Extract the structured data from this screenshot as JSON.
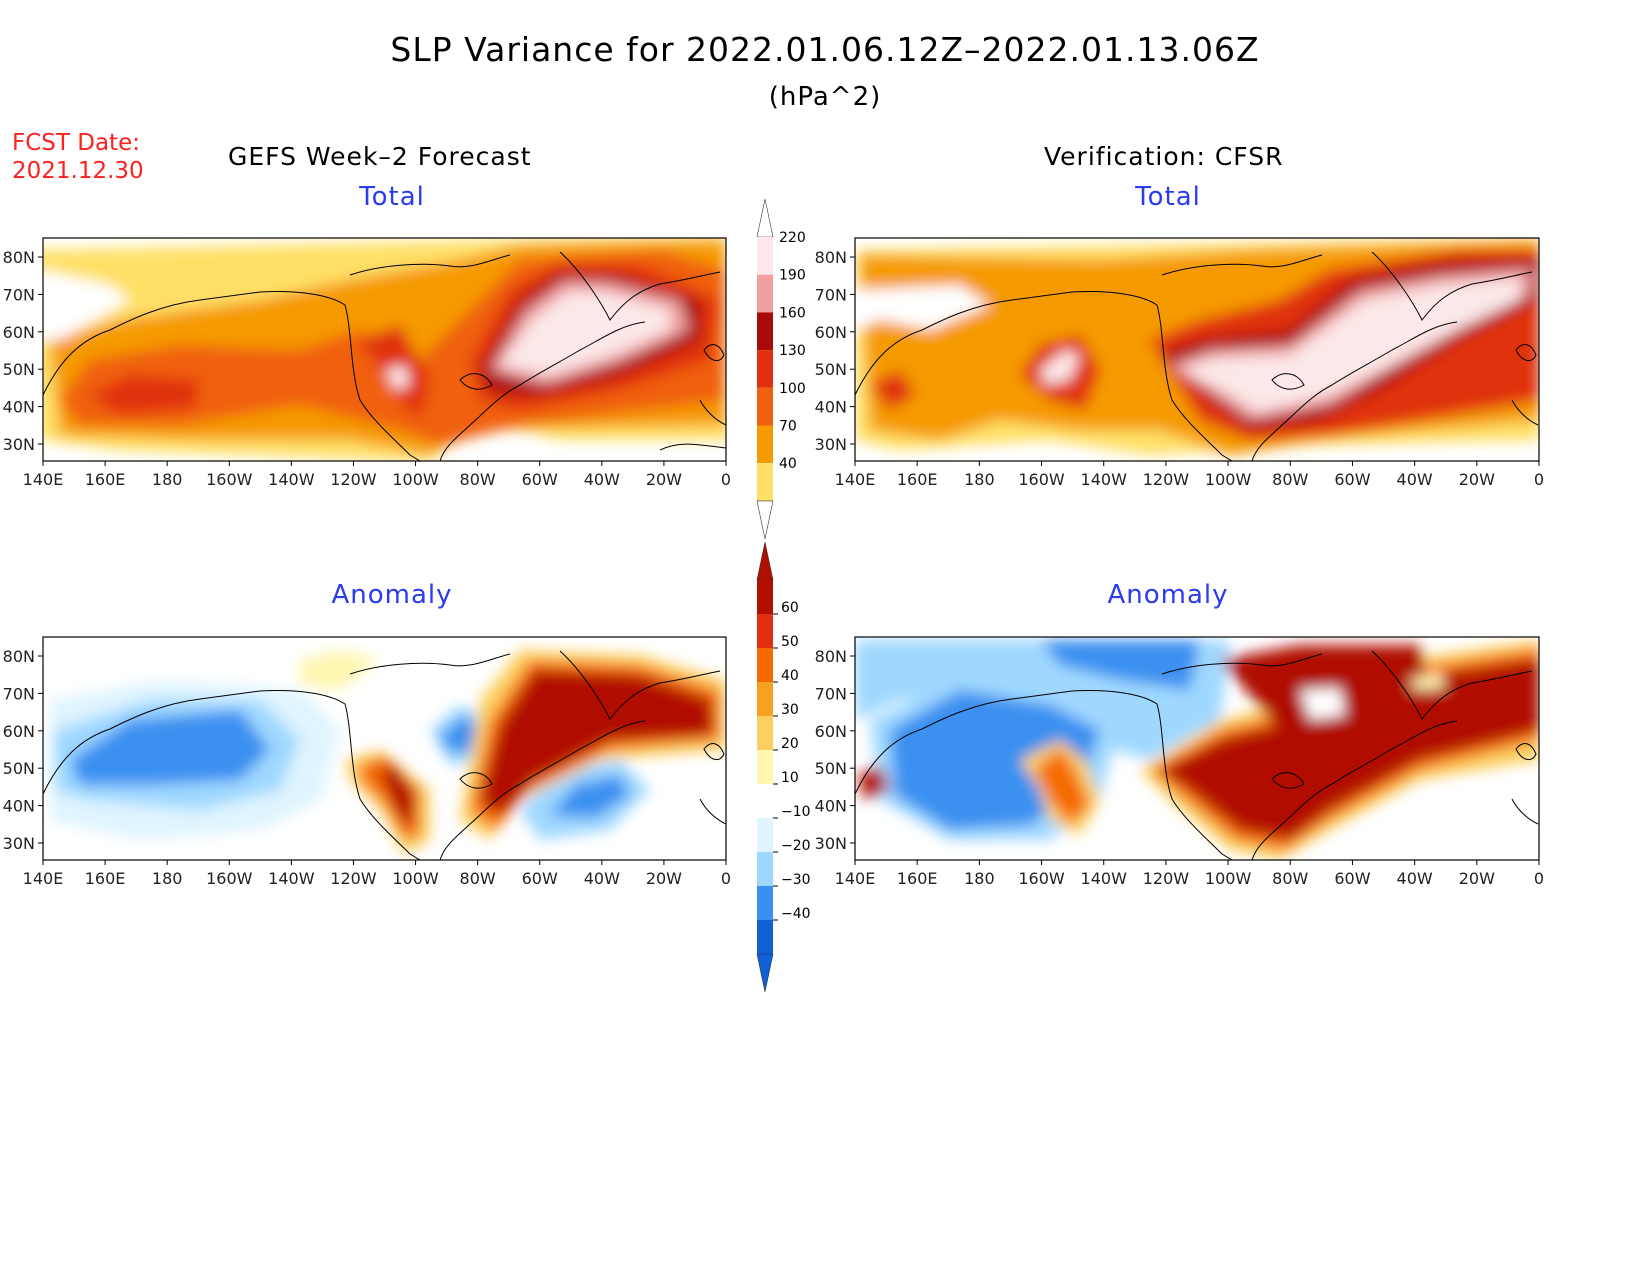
{
  "header": {
    "title": "SLP Variance for 2022.01.06.12Z–2022.01.13.06Z",
    "units": "(hPa^2)",
    "fcst_label": "FCST Date:",
    "fcst_date": "2021.12.30"
  },
  "columns": {
    "left": "GEFS Week–2 Forecast",
    "right": "Verification: CFSR"
  },
  "panels": {
    "total": "Total",
    "anomaly": "Anomaly"
  },
  "axes": {
    "lon_ticks": [
      "140E",
      "160E",
      "180",
      "160W",
      "140W",
      "120W",
      "100W",
      "80W",
      "60W",
      "40W",
      "20W",
      "0"
    ],
    "lat_ticks": [
      "80N",
      "70N",
      "60N",
      "50N",
      "40N",
      "30N"
    ]
  },
  "colorbars": {
    "total": {
      "levels": [
        "220",
        "190",
        "160",
        "130",
        "100",
        "70",
        "40"
      ],
      "colors": [
        "#fce8e8",
        "#f0a0a0",
        "#a80a0a",
        "#e03010",
        "#f06010",
        "#f59a00",
        "#ffe066"
      ]
    },
    "anomaly": {
      "levels": [
        "60",
        "50",
        "40",
        "30",
        "20",
        "10",
        "−10",
        "−20",
        "−30",
        "−40"
      ],
      "colors": [
        "#b01000",
        "#e03010",
        "#f56a00",
        "#f8a020",
        "#fbd060",
        "#fff6b0",
        "#ffffff",
        "#dff4ff",
        "#9fd8ff",
        "#3a90f0",
        "#1060d8"
      ]
    }
  }
}
